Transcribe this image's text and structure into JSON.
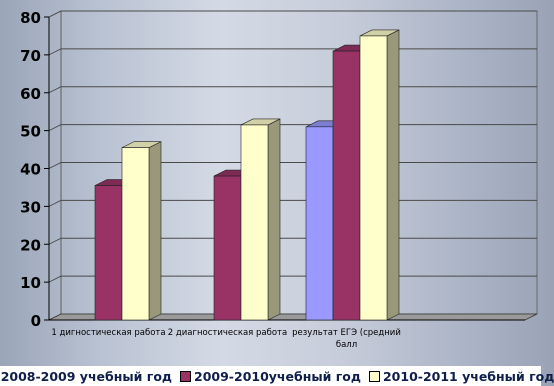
{
  "chart_data": {
    "type": "bar",
    "style": "3d-clustered-column",
    "categories": [
      "1 дигностическая работа",
      "2 диагностическая работа",
      "результат ЕГЭ (средний балл",
      ""
    ],
    "category_lines": [
      [
        "1 дигностическая работа"
      ],
      [
        "2 диагностическая работа"
      ],
      [
        "результат ЕГЭ (средний",
        "балл"
      ],
      [
        ""
      ]
    ],
    "series": [
      {
        "name": "2008-2009 учебный год",
        "values": [
          null,
          null,
          51,
          null
        ],
        "color": "#9999ff"
      },
      {
        "name": "2009-2010учебный год",
        "values": [
          35.5,
          38,
          71,
          null
        ],
        "color": "#993366"
      },
      {
        "name": "2010-2011 учебный год",
        "values": [
          45.5,
          51.5,
          75,
          null
        ],
        "color": "#ffffcc"
      }
    ],
    "yticks": [
      0,
      10,
      20,
      30,
      40,
      50,
      60,
      70,
      80
    ],
    "ylim": [
      0,
      80
    ],
    "grid": true,
    "legend_position": "bottom",
    "title": "",
    "xlabel": "",
    "ylabel": ""
  }
}
